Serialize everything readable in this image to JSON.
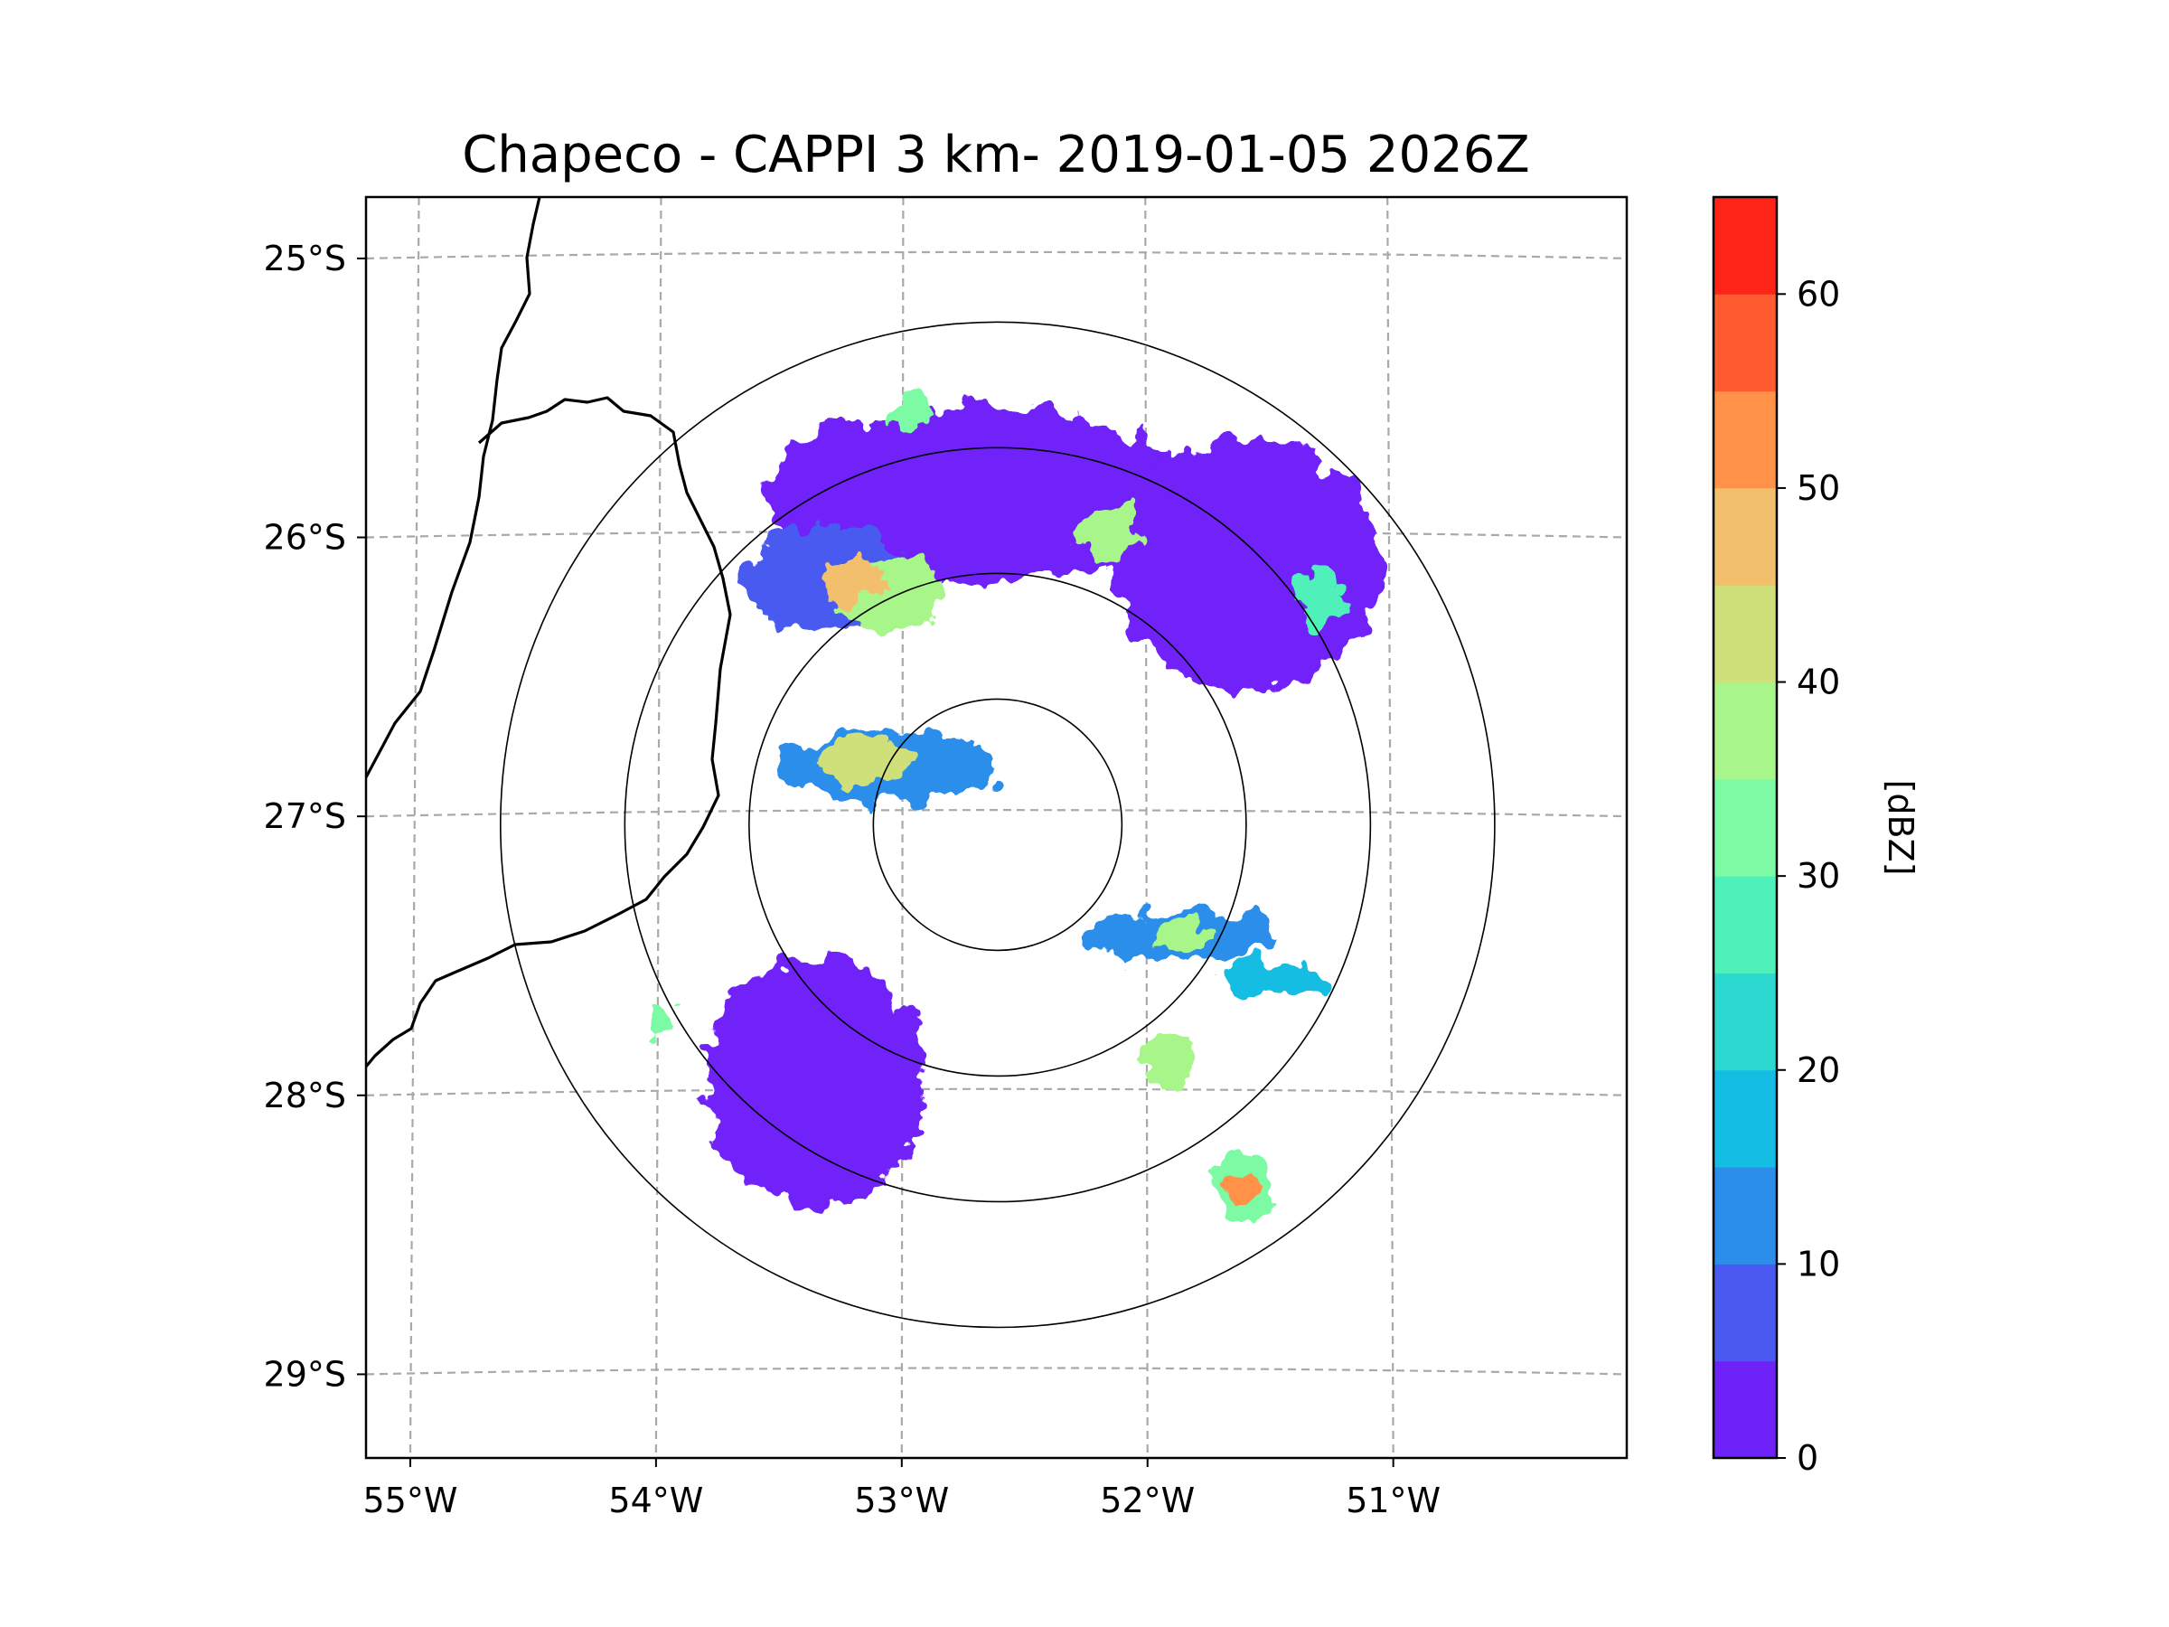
{
  "chart_data": {
    "type": "heatmap",
    "title": "Chapeco - CAPPI 3 km- 2019-01-05 2026Z",
    "xlabel": "",
    "ylabel": "",
    "xlim": [
      -55.18,
      -50.05
    ],
    "ylim": [
      -29.3,
      -24.78
    ],
    "x_ticks": [
      {
        "value": -55,
        "label": "55°W"
      },
      {
        "value": -54,
        "label": "54°W"
      },
      {
        "value": -53,
        "label": "53°W"
      },
      {
        "value": -52,
        "label": "52°W"
      },
      {
        "value": -51,
        "label": "51°W"
      }
    ],
    "y_ticks": [
      {
        "value": -25,
        "label": "25°S"
      },
      {
        "value": -26,
        "label": "26°S"
      },
      {
        "value": -27,
        "label": "27°S"
      },
      {
        "value": -28,
        "label": "28°S"
      },
      {
        "value": -29,
        "label": "29°S"
      }
    ],
    "radar_center": {
      "lon": -52.61,
      "lat": -27.03
    },
    "range_rings_km": [
      50,
      100,
      150,
      200
    ],
    "colorbar": {
      "label": "[dBZ]",
      "range": [
        0,
        65
      ],
      "ticks": [
        0,
        10,
        20,
        30,
        40,
        50,
        60
      ],
      "levels": [
        0,
        5,
        10,
        15,
        20,
        25,
        30,
        35,
        40,
        45,
        50,
        55,
        60,
        65
      ],
      "colors": [
        "#6f22f8",
        "#4a5af0",
        "#2a8eea",
        "#13bde3",
        "#2bd9d0",
        "#4ff0ba",
        "#7dfba4",
        "#a8f58a",
        "#cfdf7a",
        "#f2bf6c",
        "#ff9148",
        "#ff5a30",
        "#ff2418"
      ]
    },
    "echoes": [
      {
        "lon": -52.7,
        "lat": -25.85,
        "rx": 0.85,
        "ry": 0.32,
        "dbz": 3
      },
      {
        "lon": -51.6,
        "lat": -26.1,
        "rx": 0.55,
        "ry": 0.45,
        "dbz": 3
      },
      {
        "lon": -53.3,
        "lat": -26.15,
        "rx": 0.35,
        "ry": 0.2,
        "dbz": 8
      },
      {
        "lon": -53.05,
        "lat": -26.2,
        "rx": 0.22,
        "ry": 0.14,
        "dbz": 38
      },
      {
        "lon": -53.2,
        "lat": -26.15,
        "rx": 0.12,
        "ry": 0.09,
        "dbz": 48
      },
      {
        "lon": -52.15,
        "lat": -25.98,
        "rx": 0.12,
        "ry": 0.09,
        "dbz": 36
      },
      {
        "lon": -51.3,
        "lat": -26.22,
        "rx": 0.1,
        "ry": 0.12,
        "dbz": 26
      },
      {
        "lon": -52.95,
        "lat": -25.55,
        "rx": 0.08,
        "ry": 0.05,
        "dbz": 30
      },
      {
        "lon": -53.05,
        "lat": -26.82,
        "rx": 0.45,
        "ry": 0.12,
        "dbz": 12
      },
      {
        "lon": -53.15,
        "lat": -26.8,
        "rx": 0.2,
        "ry": 0.07,
        "dbz": 42
      },
      {
        "lon": -53.35,
        "lat": -27.95,
        "rx": 0.45,
        "ry": 0.45,
        "dbz": 3
      },
      {
        "lon": -51.85,
        "lat": -27.43,
        "rx": 0.4,
        "ry": 0.09,
        "dbz": 12
      },
      {
        "lon": -51.85,
        "lat": -27.43,
        "rx": 0.15,
        "ry": 0.05,
        "dbz": 38
      },
      {
        "lon": -51.5,
        "lat": -27.58,
        "rx": 0.22,
        "ry": 0.07,
        "dbz": 18
      },
      {
        "lon": -51.92,
        "lat": -27.88,
        "rx": 0.12,
        "ry": 0.1,
        "dbz": 38
      },
      {
        "lon": -51.6,
        "lat": -28.33,
        "rx": 0.12,
        "ry": 0.14,
        "dbz": 30
      },
      {
        "lon": -51.6,
        "lat": -28.33,
        "rx": 0.06,
        "ry": 0.05,
        "dbz": 52
      },
      {
        "lon": -53.98,
        "lat": -27.72,
        "rx": 0.06,
        "ry": 0.05,
        "dbz": 30
      }
    ]
  }
}
